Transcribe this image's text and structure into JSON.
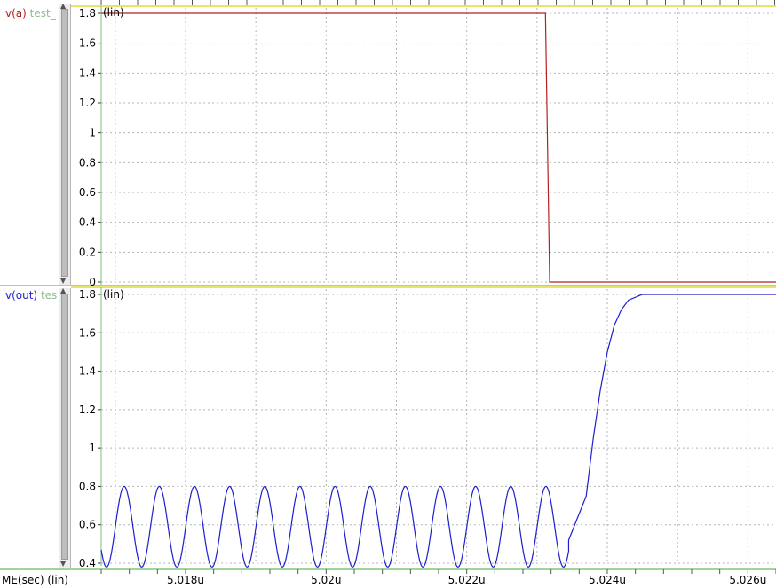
{
  "panels": [
    {
      "signal_label": "v(a)",
      "source_label": "test_",
      "signal_color": "#b22222",
      "source_color": "#8fbc8f",
      "scale_tag": "(lin)"
    },
    {
      "signal_label": "v(out)",
      "source_label": "tes",
      "signal_color": "#1e1ecc",
      "source_color": "#8fbc8f",
      "scale_tag": "(lin)"
    }
  ],
  "x_axis_label": "ME(sec) (lin)",
  "chart_data": [
    {
      "type": "line",
      "series": [
        {
          "name": "v(a)",
          "color": "#b22222"
        }
      ],
      "x_range": [
        5.0168,
        5.0264
      ],
      "ylim": [
        0,
        1.8
      ],
      "ytick_values": [
        0,
        0.2,
        0.4,
        0.6,
        0.8,
        1,
        1.2,
        1.4,
        1.6,
        1.8
      ],
      "ytick_labels": [
        "0",
        "0.2",
        "0.4",
        "0.6",
        "0.8",
        "1",
        "1.2",
        "1.4",
        "1.6",
        "1.8"
      ],
      "points": [
        [
          5.0168,
          1.8
        ],
        [
          5.02312,
          1.8
        ],
        [
          5.02318,
          0.0
        ],
        [
          5.0264,
          0.0
        ]
      ],
      "grid": true
    },
    {
      "type": "line",
      "series": [
        {
          "name": "v(out)",
          "color": "#1e1ecc"
        }
      ],
      "x_range": [
        5.0168,
        5.0264
      ],
      "ylim": [
        0.4,
        1.8
      ],
      "ytick_values": [
        0.4,
        0.6,
        0.8,
        1,
        1.2,
        1.4,
        1.6,
        1.8
      ],
      "ytick_labels": [
        "0.4",
        "0.6",
        "0.8",
        "1",
        "1.2",
        "1.4",
        "1.6",
        "1.8"
      ],
      "oscillation": {
        "start": 5.0168,
        "end": 5.02345,
        "period": 0.0005,
        "low": 0.38,
        "high": 0.8,
        "phase_start": 0.47
      },
      "dip": [
        5.02345,
        0.52
      ],
      "rise": [
        [
          5.0237,
          0.75
        ],
        [
          5.0238,
          1.05
        ],
        [
          5.0239,
          1.3
        ],
        [
          5.024,
          1.5
        ],
        [
          5.0241,
          1.64
        ],
        [
          5.0242,
          1.72
        ],
        [
          5.0243,
          1.77
        ],
        [
          5.0245,
          1.8
        ],
        [
          5.0264,
          1.8
        ]
      ],
      "grid": true
    }
  ],
  "x_ticks": [
    {
      "value": 5.018,
      "label": "5.018u"
    },
    {
      "value": 5.02,
      "label": "5.02u"
    },
    {
      "value": 5.022,
      "label": "5.022u"
    },
    {
      "value": 5.024,
      "label": "5.024u"
    },
    {
      "value": 5.026,
      "label": "5.026u"
    }
  ]
}
